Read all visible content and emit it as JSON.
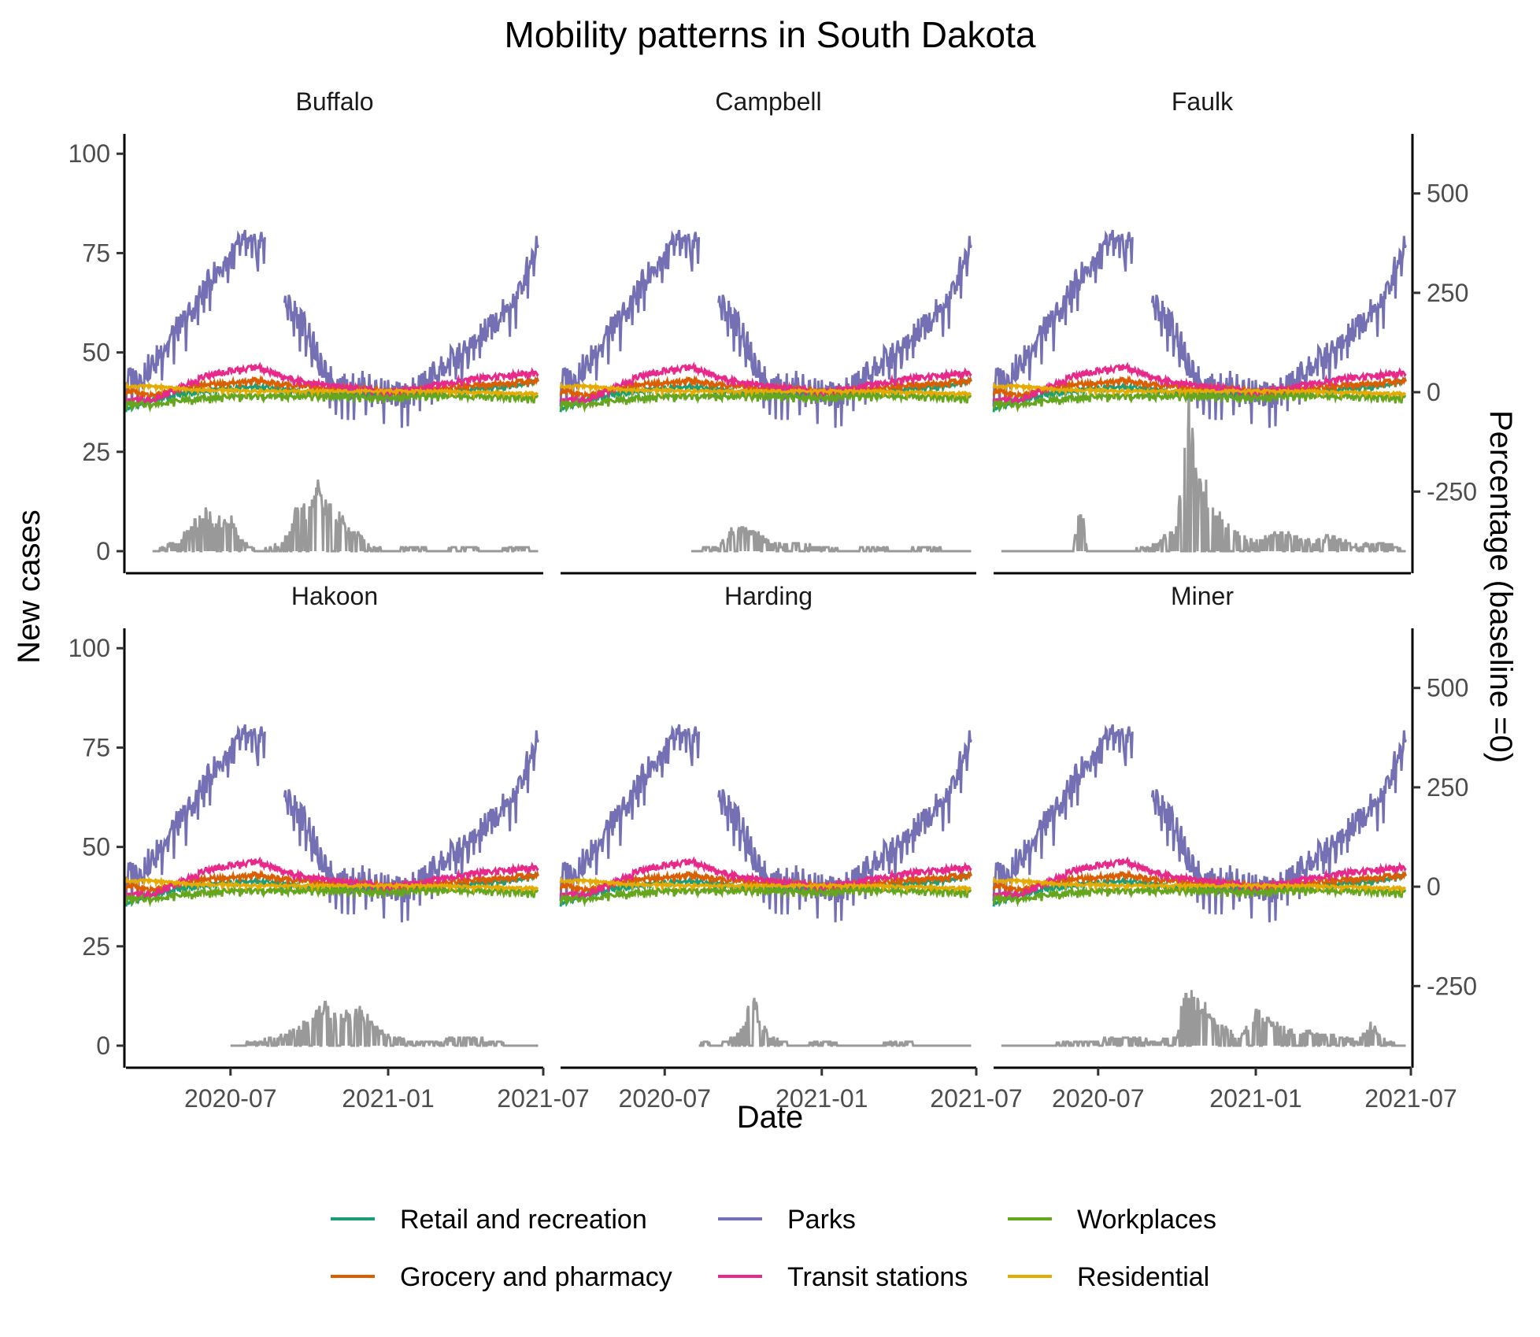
{
  "chart_data": {
    "type": "line",
    "title": "Mobility patterns in South Dakota",
    "xlabel": "Date",
    "ylabel": "New cases",
    "ylabel_right": "Percentage (baseline =0)",
    "x_ticks": [
      "2020-07",
      "2021-01",
      "2021-07"
    ],
    "xlim": [
      "2020-03-01",
      "2021-07-01"
    ],
    "ylim_left": [
      0,
      105
    ],
    "ylim_right": [
      -400,
      650
    ],
    "y_ticks_left": [
      "0",
      "25",
      "50",
      "75",
      "100"
    ],
    "y_ticks_right": [
      "-250",
      "0",
      "250",
      "500"
    ],
    "grid": false,
    "legend_position": "bottom",
    "colors": {
      "cases": "#999999",
      "Retail and recreation": "#1b9e77",
      "Grocery and pharmacy": "#d95f02",
      "Parks": "#7570b3",
      "Transit stations": "#e7298a",
      "Workplaces": "#66a61e",
      "Residential": "#e6ab02"
    },
    "legend": [
      "Retail and recreation",
      "Grocery and pharmacy",
      "Parks",
      "Transit stations",
      "Workplaces",
      "Residential"
    ],
    "mobility_series": {
      "Parks": {
        "x": [
          "2020-03-01",
          "2020-03-15",
          "2020-04-01",
          "2020-04-15",
          "2020-05-01",
          "2020-05-15",
          "2020-06-01",
          "2020-06-15",
          "2020-07-01",
          "2020-07-15",
          "2020-08-01",
          "2020-08-10",
          "2020-08-20",
          "2020-09-01",
          "2020-09-15",
          "2020-10-01",
          "2020-10-15",
          "2020-11-01",
          "2020-11-15",
          "2020-12-01",
          "2020-12-15",
          "2021-01-01",
          "2021-01-15",
          "2021-02-01",
          "2021-02-15",
          "2021-03-01",
          "2021-03-15",
          "2021-04-01",
          "2021-04-15",
          "2021-05-01",
          "2021-05-15",
          "2021-06-01",
          "2021-06-15",
          "2021-06-25"
        ],
        "y": [
          30,
          40,
          70,
          120,
          160,
          200,
          260,
          310,
          340,
          380,
          360,
          400,
          null,
          230,
          200,
          150,
          60,
          20,
          10,
          20,
          10,
          0,
          -10,
          5,
          30,
          60,
          80,
          100,
          130,
          170,
          200,
          240,
          330,
          380
        ]
      },
      "Retail and recreation": {
        "x": [
          "2020-03-01",
          "2020-04-01",
          "2020-05-01",
          "2020-06-01",
          "2020-07-01",
          "2020-08-01",
          "2020-09-01",
          "2020-10-01",
          "2020-11-01",
          "2020-12-01",
          "2021-01-01",
          "2021-02-01",
          "2021-03-01",
          "2021-04-01",
          "2021-05-01",
          "2021-06-01",
          "2021-06-25"
        ],
        "y": [
          -40,
          -20,
          -5,
          5,
          10,
          15,
          5,
          0,
          -5,
          -5,
          -5,
          -5,
          0,
          5,
          10,
          20,
          30
        ]
      },
      "Grocery and pharmacy": {
        "x": [
          "2020-03-01",
          "2020-04-01",
          "2020-05-01",
          "2020-06-01",
          "2020-07-01",
          "2020-08-01",
          "2020-09-01",
          "2020-10-01",
          "2020-11-01",
          "2020-12-01",
          "2021-01-01",
          "2021-02-01",
          "2021-03-01",
          "2021-04-01",
          "2021-05-01",
          "2021-06-01",
          "2021-06-25"
        ],
        "y": [
          5,
          -10,
          10,
          20,
          25,
          30,
          20,
          15,
          10,
          10,
          0,
          5,
          10,
          15,
          20,
          25,
          30
        ]
      },
      "Transit stations": {
        "x": [
          "2020-03-01",
          "2020-04-01",
          "2020-05-01",
          "2020-06-01",
          "2020-07-01",
          "2020-08-01",
          "2020-09-01",
          "2020-10-01",
          "2020-11-01",
          "2020-12-01",
          "2021-01-01",
          "2021-02-01",
          "2021-03-01",
          "2021-04-01",
          "2021-05-01",
          "2021-06-01",
          "2021-06-25"
        ],
        "y": [
          -20,
          -20,
          10,
          40,
          55,
          65,
          40,
          25,
          15,
          10,
          0,
          10,
          20,
          30,
          40,
          45,
          50
        ]
      },
      "Workplaces": {
        "x": [
          "2020-03-01",
          "2020-04-01",
          "2020-05-01",
          "2020-06-01",
          "2020-07-01",
          "2020-08-01",
          "2020-09-01",
          "2020-10-01",
          "2020-11-01",
          "2020-12-01",
          "2021-01-01",
          "2021-02-01",
          "2021-03-01",
          "2021-04-01",
          "2021-05-01",
          "2021-06-01",
          "2021-06-25"
        ],
        "y": [
          -30,
          -30,
          -20,
          -15,
          -10,
          -10,
          -10,
          -8,
          -10,
          -12,
          -15,
          -10,
          -8,
          -10,
          -10,
          -12,
          -15
        ]
      },
      "Residential": {
        "x": [
          "2020-03-01",
          "2020-04-01",
          "2020-05-01",
          "2020-06-01",
          "2020-07-01",
          "2020-08-01",
          "2020-09-01",
          "2020-10-01",
          "2020-11-01",
          "2020-12-01",
          "2021-01-01",
          "2021-02-01",
          "2021-03-01",
          "2021-04-01",
          "2021-05-01",
          "2021-06-01",
          "2021-06-25"
        ],
        "y": [
          15,
          15,
          10,
          5,
          5,
          3,
          3,
          3,
          3,
          3,
          3,
          3,
          3,
          0,
          0,
          -3,
          -3
        ]
      }
    },
    "panels": [
      {
        "name": "Buffalo",
        "cases_x": [
          "2020-04-01",
          "2020-05-01",
          "2020-05-15",
          "2020-06-01",
          "2020-06-15",
          "2020-07-01",
          "2020-07-15",
          "2020-08-01",
          "2020-09-01",
          "2020-09-15",
          "2020-10-01",
          "2020-10-10",
          "2020-10-20",
          "2020-11-01",
          "2020-11-15",
          "2020-12-01",
          "2020-12-15",
          "2021-01-01",
          "2021-02-01",
          "2021-03-01",
          "2021-04-01",
          "2021-05-01",
          "2021-06-01",
          "2021-06-25"
        ],
        "cases_y": [
          0,
          2,
          5,
          8,
          6,
          7,
          2,
          0,
          2,
          8,
          10,
          14,
          10,
          8,
          5,
          3,
          1,
          0,
          1,
          0,
          1,
          0,
          1,
          0
        ]
      },
      {
        "name": "Campbell",
        "cases_x": [
          "2020-08-01",
          "2020-09-01",
          "2020-09-15",
          "2020-10-01",
          "2020-10-15",
          "2020-11-01",
          "2020-11-15",
          "2020-12-01",
          "2021-01-01",
          "2021-02-01",
          "2021-03-01",
          "2021-04-01",
          "2021-05-01",
          "2021-06-01",
          "2021-06-25"
        ],
        "cases_y": [
          0,
          1,
          4,
          5,
          4,
          2,
          1,
          2,
          1,
          0,
          1,
          0,
          1,
          0,
          0
        ]
      },
      {
        "name": "Faulk",
        "cases_x": [
          "2020-03-10",
          "2020-06-01",
          "2020-06-10",
          "2020-06-20",
          "2020-08-01",
          "2020-09-01",
          "2020-10-01",
          "2020-10-15",
          "2020-10-25",
          "2020-11-01",
          "2020-11-15",
          "2020-12-01",
          "2020-12-15",
          "2021-01-01",
          "2021-02-01",
          "2021-03-01",
          "2021-04-01",
          "2021-05-01",
          "2021-06-01",
          "2021-06-25"
        ],
        "cases_y": [
          0,
          0,
          9,
          0,
          0,
          1,
          5,
          29,
          12,
          15,
          8,
          5,
          3,
          2,
          4,
          2,
          3,
          1,
          2,
          0
        ]
      },
      {
        "name": "Hakoon",
        "cases_x": [
          "2020-07-01",
          "2020-08-01",
          "2020-09-01",
          "2020-09-15",
          "2020-10-01",
          "2020-10-15",
          "2020-11-01",
          "2020-11-15",
          "2020-12-01",
          "2020-12-15",
          "2021-01-01",
          "2021-02-01",
          "2021-03-01",
          "2021-04-01",
          "2021-05-01",
          "2021-06-01",
          "2021-06-25"
        ],
        "cases_y": [
          0,
          1,
          2,
          4,
          5,
          9,
          6,
          7,
          8,
          4,
          2,
          1,
          1,
          2,
          1,
          0,
          0
        ]
      },
      {
        "name": "Harding",
        "cases_x": [
          "2020-08-10",
          "2020-09-01",
          "2020-09-15",
          "2020-10-01",
          "2020-10-10",
          "2020-10-20",
          "2020-11-01",
          "2020-11-15",
          "2020-12-01",
          "2021-01-01",
          "2021-02-01",
          "2021-03-01",
          "2021-04-01",
          "2021-05-01",
          "2021-06-01",
          "2021-06-25"
        ],
        "cases_y": [
          1,
          0,
          1,
          4,
          12,
          5,
          2,
          1,
          0,
          1,
          0,
          0,
          1,
          0,
          0,
          0
        ]
      },
      {
        "name": "Miner",
        "cases_x": [
          "2020-03-10",
          "2020-05-01",
          "2020-06-01",
          "2020-07-01",
          "2020-08-01",
          "2020-09-01",
          "2020-10-01",
          "2020-10-10",
          "2020-10-20",
          "2020-11-01",
          "2020-11-15",
          "2020-12-01",
          "2020-12-15",
          "2021-01-01",
          "2021-02-01",
          "2021-03-01",
          "2021-04-01",
          "2021-05-01",
          "2021-05-15",
          "2021-06-01",
          "2021-06-25"
        ],
        "cases_y": [
          0,
          0,
          1,
          1,
          2,
          1,
          2,
          14,
          10,
          8,
          5,
          3,
          2,
          7,
          4,
          3,
          2,
          1,
          5,
          1,
          0
        ]
      }
    ]
  }
}
